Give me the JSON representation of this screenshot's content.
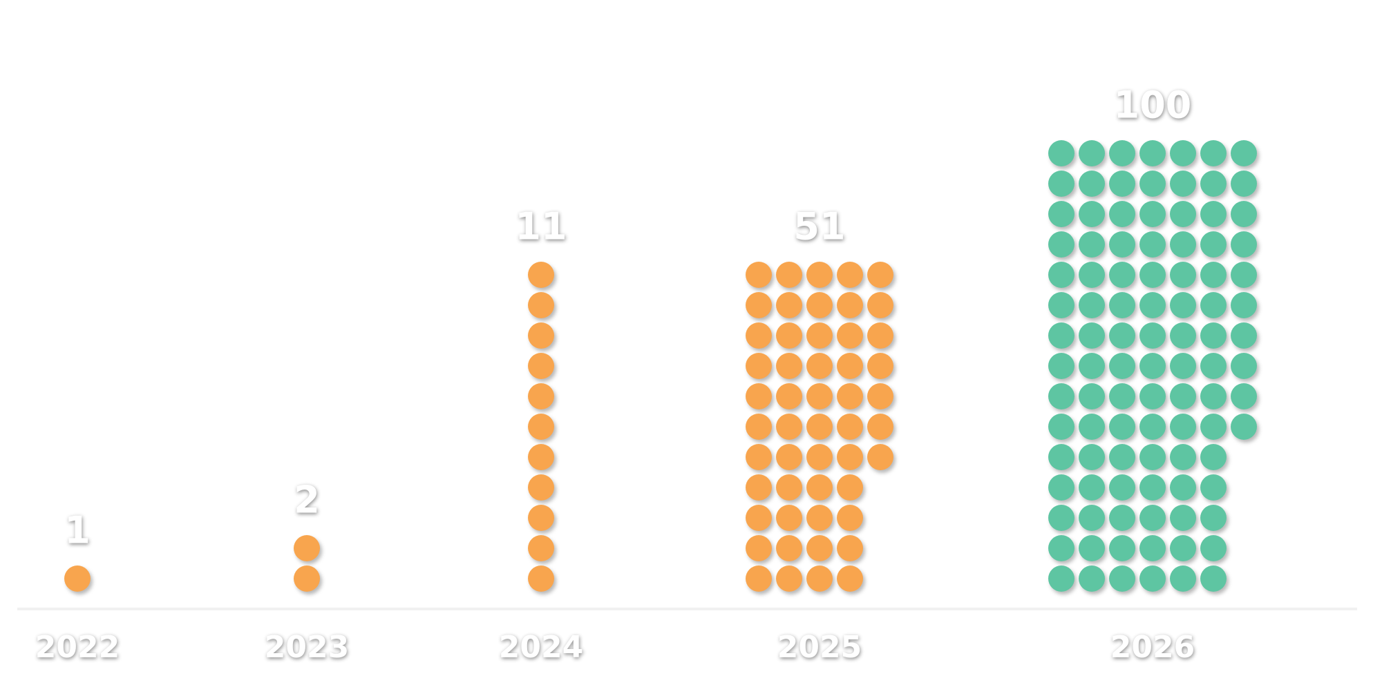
{
  "chart_data": {
    "type": "pictogram",
    "categories": [
      "2022",
      "2023",
      "2024",
      "2025",
      "2026"
    ],
    "values": [
      1,
      2,
      11,
      51,
      100
    ],
    "colors": [
      "#f8a54e",
      "#f8a54e",
      "#f8a54e",
      "#f8a54e",
      "#5ec5a2"
    ]
  }
}
